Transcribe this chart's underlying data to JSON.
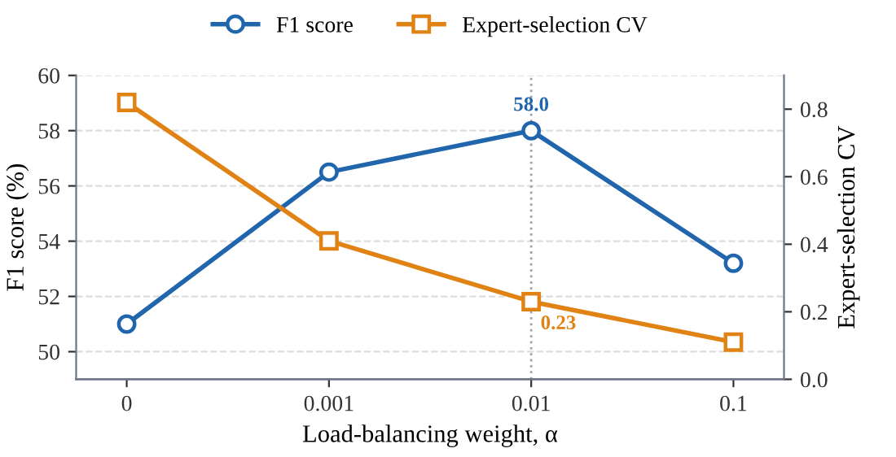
{
  "chart_data": {
    "type": "line",
    "categories": [
      "0",
      "0.001",
      "0.01",
      "0.1"
    ],
    "xlabel": "Load-balancing weight, α",
    "ylabel": "F1 score (%)",
    "y2label": "Expert-selection CV",
    "ylim": [
      49,
      60
    ],
    "yticks": [
      50,
      52,
      54,
      56,
      58,
      60
    ],
    "y2lim": [
      0,
      0.9
    ],
    "y2ticks": [
      {
        "value": 0,
        "label": "0.0"
      },
      0.2,
      0.4,
      0.6,
      0.8
    ],
    "grid": "y",
    "legend": "top",
    "line_style": "solid",
    "series": [
      {
        "name": "F1 score",
        "color": "#2166ac",
        "marker": "circle",
        "values": [
          51.0,
          56.5,
          58.0,
          53.2
        ],
        "value_labels": [
          null,
          null,
          "58.0",
          null
        ]
      },
      {
        "name": "Expert-selection CV",
        "color": "#e08214",
        "marker": "square",
        "axis": "y2",
        "values": [
          0.82,
          0.41,
          0.23,
          0.11
        ],
        "value_labels": [
          null,
          null,
          "0.23",
          null
        ]
      }
    ],
    "ref_lines": [
      {
        "axis": "x",
        "value": "0.01",
        "color": "#9aa5b1",
        "line_style": "dotted"
      }
    ]
  }
}
